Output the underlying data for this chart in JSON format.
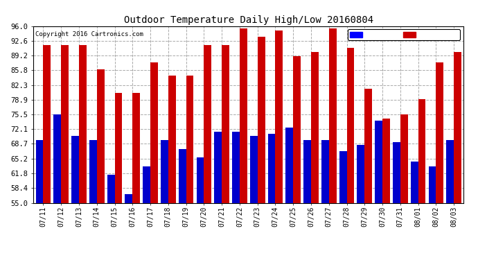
{
  "title": "Outdoor Temperature Daily High/Low 20160804",
  "copyright": "Copyright 2016 Cartronics.com",
  "dates": [
    "07/11",
    "07/12",
    "07/13",
    "07/14",
    "07/15",
    "07/16",
    "07/17",
    "07/18",
    "07/19",
    "07/20",
    "07/21",
    "07/22",
    "07/23",
    "07/24",
    "07/25",
    "07/26",
    "07/27",
    "07/28",
    "07/29",
    "07/30",
    "07/31",
    "08/01",
    "08/02",
    "08/03"
  ],
  "high": [
    91.5,
    91.5,
    91.5,
    86.0,
    80.5,
    80.5,
    87.5,
    84.5,
    84.5,
    91.5,
    91.5,
    95.5,
    93.5,
    95.0,
    89.0,
    90.0,
    95.5,
    91.0,
    81.5,
    74.5,
    75.5,
    79.0,
    87.5,
    90.0
  ],
  "low": [
    69.5,
    75.5,
    70.5,
    69.5,
    61.5,
    57.0,
    63.5,
    69.5,
    67.5,
    65.5,
    71.5,
    71.5,
    70.5,
    71.0,
    72.5,
    69.5,
    69.5,
    67.0,
    68.5,
    74.0,
    69.0,
    64.5,
    63.5,
    69.5
  ],
  "ylim": [
    55.0,
    96.0
  ],
  "yticks": [
    55.0,
    58.4,
    61.8,
    65.2,
    68.7,
    72.1,
    75.5,
    78.9,
    82.3,
    85.8,
    89.2,
    92.6,
    96.0
  ],
  "bar_width": 0.42,
  "low_color": "#0000cc",
  "high_color": "#cc0000",
  "bg_color": "#ffffff",
  "grid_color": "#aaaaaa",
  "title_color": "#000000",
  "copyright_color": "#000000",
  "legend_low_color": "#0000ff",
  "legend_high_color": "#cc0000",
  "figsize": [
    6.9,
    3.75
  ],
  "dpi": 100
}
